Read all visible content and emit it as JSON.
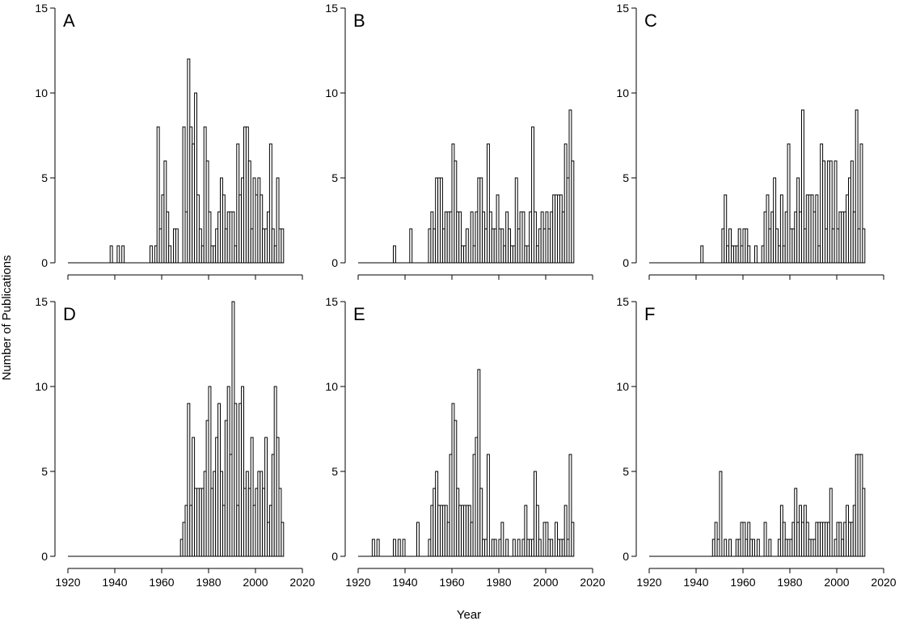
{
  "figure": {
    "ylabel": "Number of Publications",
    "xlabel": "Year"
  },
  "chart_data": [
    {
      "type": "bar",
      "panel": "A",
      "xlim": [
        1920,
        2020
      ],
      "ylim": [
        0,
        15
      ],
      "xticks": [
        1920,
        1940,
        1960,
        1980,
        2000,
        2020
      ],
      "yticks": [
        0,
        5,
        10,
        15
      ],
      "years": [
        1938,
        1941,
        1943,
        1955,
        1957,
        1958,
        1959,
        1960,
        1961,
        1962,
        1963,
        1965,
        1966,
        1969,
        1970,
        1971,
        1972,
        1973,
        1974,
        1975,
        1976,
        1977,
        1978,
        1979,
        1980,
        1981,
        1982,
        1983,
        1984,
        1985,
        1986,
        1987,
        1988,
        1989,
        1990,
        1991,
        1992,
        1993,
        1994,
        1995,
        1996,
        1997,
        1998,
        1999,
        2000,
        2001,
        2002,
        2003,
        2004,
        2005,
        2006,
        2007,
        2008,
        2009,
        2010,
        2011
      ],
      "values": [
        1,
        1,
        1,
        1,
        1,
        8,
        2,
        4,
        6,
        3,
        1,
        2,
        2,
        8,
        3,
        12,
        8,
        7,
        10,
        4,
        2,
        1,
        8,
        6,
        3,
        1,
        1,
        2,
        3,
        5,
        4,
        2,
        3,
        3,
        3,
        1,
        7,
        4,
        5,
        8,
        8,
        6,
        2,
        5,
        4,
        5,
        4,
        2,
        2,
        3,
        7,
        2,
        1,
        5,
        2,
        2
      ]
    },
    {
      "type": "bar",
      "panel": "B",
      "xlim": [
        1920,
        2020
      ],
      "ylim": [
        0,
        15
      ],
      "xticks": [
        1920,
        1940,
        1960,
        1980,
        2000,
        2020
      ],
      "yticks": [
        0,
        5,
        10,
        15
      ],
      "years": [
        1935,
        1942,
        1950,
        1951,
        1952,
        1953,
        1954,
        1955,
        1956,
        1957,
        1958,
        1959,
        1960,
        1961,
        1962,
        1963,
        1964,
        1965,
        1966,
        1968,
        1969,
        1970,
        1971,
        1972,
        1973,
        1974,
        1975,
        1976,
        1977,
        1978,
        1979,
        1980,
        1981,
        1982,
        1983,
        1984,
        1985,
        1986,
        1987,
        1988,
        1989,
        1990,
        1991,
        1992,
        1993,
        1994,
        1995,
        1996,
        1997,
        1998,
        1999,
        2000,
        2001,
        2002,
        2003,
        2004,
        2005,
        2006,
        2007,
        2008,
        2009,
        2010,
        2011
      ],
      "values": [
        1,
        2,
        2,
        3,
        2,
        5,
        5,
        5,
        2,
        3,
        3,
        3,
        7,
        6,
        3,
        3,
        1,
        1,
        2,
        3,
        1,
        3,
        5,
        5,
        3,
        2,
        7,
        3,
        2,
        2,
        4,
        2,
        2,
        1,
        3,
        2,
        1,
        1,
        5,
        2,
        3,
        3,
        1,
        1,
        3,
        8,
        3,
        1,
        2,
        3,
        2,
        3,
        2,
        3,
        4,
        4,
        4,
        4,
        3,
        7,
        5,
        9,
        6
      ]
    },
    {
      "type": "bar",
      "panel": "C",
      "xlim": [
        1920,
        2020
      ],
      "ylim": [
        0,
        15
      ],
      "xticks": [
        1920,
        1940,
        1960,
        1980,
        2000,
        2020
      ],
      "yticks": [
        0,
        5,
        10,
        15
      ],
      "years": [
        1942,
        1951,
        1952,
        1953,
        1954,
        1955,
        1956,
        1957,
        1958,
        1959,
        1960,
        1961,
        1962,
        1965,
        1968,
        1969,
        1970,
        1971,
        1972,
        1973,
        1974,
        1975,
        1976,
        1977,
        1978,
        1979,
        1980,
        1981,
        1982,
        1983,
        1984,
        1985,
        1986,
        1987,
        1988,
        1989,
        1990,
        1991,
        1992,
        1993,
        1994,
        1995,
        1996,
        1997,
        1998,
        1999,
        2000,
        2001,
        2002,
        2003,
        2004,
        2005,
        2006,
        2007,
        2008,
        2009,
        2010,
        2011
      ],
      "values": [
        1,
        2,
        4,
        1,
        2,
        1,
        1,
        1,
        2,
        1,
        2,
        2,
        1,
        1,
        1,
        3,
        4,
        2,
        3,
        5,
        2,
        1,
        4,
        1,
        3,
        7,
        2,
        2,
        3,
        5,
        3,
        9,
        2,
        4,
        4,
        4,
        3,
        4,
        1,
        7,
        6,
        2,
        6,
        6,
        2,
        6,
        2,
        3,
        3,
        3,
        4,
        5,
        6,
        3,
        9,
        2,
        7,
        2
      ]
    },
    {
      "type": "bar",
      "panel": "D",
      "xlim": [
        1920,
        2020
      ],
      "ylim": [
        0,
        15
      ],
      "xticks": [
        1920,
        1940,
        1960,
        1980,
        2000,
        2020
      ],
      "yticks": [
        0,
        5,
        10,
        15
      ],
      "years": [
        1968,
        1969,
        1970,
        1971,
        1972,
        1973,
        1974,
        1975,
        1976,
        1977,
        1978,
        1979,
        1980,
        1981,
        1982,
        1983,
        1984,
        1985,
        1986,
        1987,
        1988,
        1989,
        1990,
        1991,
        1992,
        1993,
        1994,
        1995,
        1996,
        1997,
        1998,
        1999,
        2000,
        2001,
        2002,
        2003,
        2004,
        2005,
        2006,
        2007,
        2008,
        2009,
        2010,
        2011
      ],
      "values": [
        1,
        2,
        3,
        9,
        3,
        7,
        4,
        4,
        4,
        4,
        5,
        8,
        10,
        4,
        5,
        7,
        9,
        5,
        3,
        8,
        10,
        6,
        15,
        9,
        3,
        9,
        10,
        4,
        5,
        4,
        7,
        3,
        4,
        5,
        5,
        4,
        7,
        2,
        3,
        6,
        10,
        7,
        4,
        2
      ]
    },
    {
      "type": "bar",
      "panel": "E",
      "xlim": [
        1920,
        2020
      ],
      "ylim": [
        0,
        15
      ],
      "xticks": [
        1920,
        1940,
        1960,
        1980,
        2000,
        2020
      ],
      "yticks": [
        0,
        5,
        10,
        15
      ],
      "years": [
        1926,
        1928,
        1935,
        1937,
        1939,
        1945,
        1950,
        1951,
        1952,
        1953,
        1954,
        1955,
        1956,
        1957,
        1958,
        1959,
        1960,
        1961,
        1962,
        1963,
        1964,
        1965,
        1966,
        1967,
        1968,
        1969,
        1970,
        1971,
        1972,
        1973,
        1974,
        1975,
        1977,
        1978,
        1980,
        1981,
        1983,
        1986,
        1988,
        1990,
        1991,
        1992,
        1993,
        1994,
        1995,
        1996,
        1997,
        1999,
        2000,
        2001,
        2002,
        2004,
        2005,
        2006,
        2007,
        2008,
        2009,
        2010,
        2011
      ],
      "values": [
        1,
        1,
        1,
        1,
        1,
        2,
        1,
        3,
        4,
        5,
        3,
        3,
        3,
        3,
        2,
        6,
        9,
        8,
        4,
        3,
        3,
        3,
        3,
        3,
        2,
        6,
        7,
        11,
        4,
        1,
        1,
        6,
        1,
        1,
        1,
        2,
        1,
        1,
        1,
        1,
        3,
        1,
        1,
        1,
        5,
        3,
        1,
        2,
        2,
        1,
        1,
        2,
        1,
        1,
        1,
        3,
        1,
        6,
        2
      ]
    },
    {
      "type": "bar",
      "panel": "F",
      "xlim": [
        1920,
        2020
      ],
      "ylim": [
        0,
        15
      ],
      "xticks": [
        1920,
        1940,
        1960,
        1980,
        2000,
        2020
      ],
      "yticks": [
        0,
        5,
        10,
        15
      ],
      "years": [
        1947,
        1948,
        1949,
        1950,
        1952,
        1954,
        1957,
        1958,
        1959,
        1960,
        1961,
        1962,
        1963,
        1964,
        1966,
        1969,
        1971,
        1975,
        1976,
        1977,
        1978,
        1979,
        1980,
        1981,
        1982,
        1983,
        1984,
        1985,
        1986,
        1987,
        1988,
        1989,
        1990,
        1991,
        1992,
        1993,
        1994,
        1995,
        1996,
        1997,
        1999,
        2000,
        2001,
        2002,
        2003,
        2004,
        2005,
        2006,
        2007,
        2008,
        2009,
        2010,
        2011
      ],
      "values": [
        1,
        2,
        1,
        5,
        1,
        1,
        1,
        1,
        2,
        2,
        1,
        2,
        1,
        1,
        1,
        2,
        1,
        1,
        3,
        2,
        1,
        1,
        1,
        2,
        4,
        2,
        3,
        2,
        3,
        2,
        1,
        1,
        1,
        2,
        2,
        2,
        2,
        2,
        2,
        4,
        1,
        2,
        2,
        1,
        2,
        3,
        2,
        2,
        3,
        6,
        6,
        6,
        4
      ]
    }
  ]
}
